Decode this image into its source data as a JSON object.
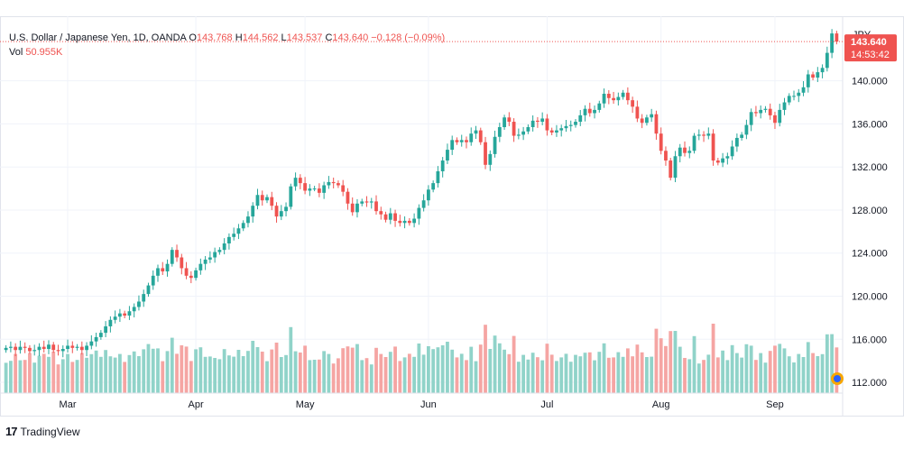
{
  "legend": {
    "symbol": "U.S. Dollar / Japanese Yen, 1D, OANDA",
    "o_label": "O",
    "o_value": "143.768",
    "h_label": "H",
    "h_value": "144.562",
    "l_label": "L",
    "l_value": "143.537",
    "c_label": "C",
    "c_value": "143.640",
    "change": "−0.128 (−0.09%)",
    "vol_label": "Vol",
    "vol_value": "50.955K"
  },
  "price_axis": {
    "currency": "JPY",
    "last_price": "143.640",
    "countdown": "14:53:42"
  },
  "footer": {
    "brand": "TradingView"
  },
  "colors": {
    "up": "#26a69a",
    "down": "#ef5350",
    "up_vol": "#90d3c9",
    "down_vol": "#f5a5a3",
    "grid": "#f0f3fa"
  },
  "chart_data": {
    "type": "candlestick",
    "ylim": [
      111,
      146
    ],
    "yticks": [
      112,
      116,
      120,
      124,
      128,
      132,
      136,
      140
    ],
    "ytick_labels": [
      "112.000",
      "116.000",
      "120.000",
      "124.000",
      "128.000",
      "132.000",
      "136.000",
      "140.000"
    ],
    "x_labels": [
      "Mar",
      "Apr",
      "May",
      "Jun",
      "Jul",
      "Aug",
      "Sep"
    ],
    "x_label_index": [
      13,
      40,
      63,
      89,
      114,
      138,
      162
    ],
    "last_close": 143.64,
    "close_path": [
      115.2,
      115.3,
      115.0,
      115.3,
      115.2,
      114.9,
      115.0,
      115.3,
      115.1,
      115.5,
      115.0,
      114.9,
      115.1,
      115.4,
      115.2,
      115.3,
      115.0,
      115.4,
      115.8,
      116.2,
      116.6,
      117.2,
      117.8,
      118.1,
      118.4,
      118.2,
      118.6,
      119.0,
      119.5,
      120.2,
      121.0,
      121.9,
      122.6,
      122.3,
      123.0,
      124.3,
      123.6,
      122.6,
      121.9,
      121.7,
      122.4,
      123.0,
      123.4,
      123.6,
      124.1,
      124.3,
      124.9,
      125.5,
      125.8,
      126.3,
      126.8,
      127.4,
      128.4,
      129.4,
      128.9,
      129.2,
      128.4,
      127.4,
      127.9,
      128.3,
      130.2,
      131.0,
      130.5,
      129.8,
      130.0,
      130.0,
      129.6,
      130.3,
      130.6,
      130.5,
      130.3,
      129.7,
      128.6,
      127.8,
      128.6,
      128.8,
      128.7,
      128.8,
      127.9,
      127.6,
      127.1,
      127.7,
      127.0,
      126.8,
      127.0,
      126.8,
      127.2,
      128.2,
      128.9,
      129.9,
      130.5,
      131.6,
      132.6,
      133.6,
      134.5,
      134.3,
      134.5,
      134.3,
      135.1,
      135.4,
      134.3,
      132.2,
      133.2,
      134.8,
      135.7,
      136.6,
      136.2,
      134.9,
      135.0,
      135.3,
      135.7,
      136.3,
      136.2,
      136.5,
      135.4,
      135.2,
      135.4,
      135.6,
      135.8,
      135.9,
      136.2,
      136.8,
      137.4,
      137.0,
      137.3,
      137.9,
      138.8,
      138.4,
      138.2,
      138.5,
      138.9,
      138.2,
      137.6,
      136.5,
      136.1,
      136.6,
      136.9,
      135.1,
      133.5,
      132.6,
      131.0,
      133.0,
      133.8,
      133.3,
      133.5,
      134.9,
      135.0,
      134.9,
      135.1,
      132.6,
      132.4,
      132.8,
      133.0,
      133.9,
      134.7,
      135.0,
      135.9,
      137.1,
      137.0,
      137.3,
      137.4,
      136.8,
      136.1,
      137.3,
      138.0,
      138.6,
      138.6,
      138.9,
      139.4,
      140.6,
      140.3,
      140.8,
      141.2,
      142.6,
      144.4,
      143.64
    ]
  }
}
